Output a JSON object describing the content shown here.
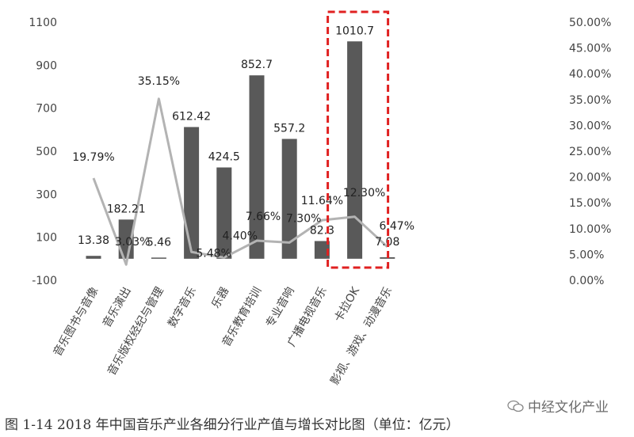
{
  "chart_data": {
    "type": "bar",
    "categories": [
      "音乐图书与音像",
      "音乐演出",
      "音乐版权经纪与管理",
      "数字音乐",
      "乐器",
      "音乐教育培训",
      "专业音响",
      "广播电视音乐",
      "卡拉OK",
      "影视、游戏、动漫音乐"
    ],
    "series": [
      {
        "type": "bar",
        "axis": "left",
        "values": [
          13.38,
          182.21,
          5.46,
          612.42,
          424.5,
          852.7,
          557.2,
          82.3,
          1010.7,
          7.08
        ],
        "labels": [
          "13.38",
          "182.21",
          "5.46",
          "612.42",
          "424.5",
          "852.7",
          "557.2",
          "82.3",
          "1010.7",
          "7.08"
        ],
        "color": "#595959"
      },
      {
        "type": "line",
        "axis": "right",
        "values": [
          19.79,
          3.03,
          35.15,
          5.48,
          4.4,
          7.66,
          7.3,
          11.64,
          12.3,
          6.47
        ],
        "labels": [
          "19.79%",
          "3.03%",
          "35.15%",
          "5.48%",
          "4.40%",
          "7.66%",
          "7.30%",
          "11.64%",
          "12.30%",
          "6.47%"
        ],
        "color": "#b3b3b3"
      }
    ],
    "left_axis": {
      "ticks": [
        "-100",
        "100",
        "300",
        "500",
        "700",
        "900",
        "1100"
      ],
      "range": [
        -100,
        1100
      ]
    },
    "right_axis": {
      "ticks": [
        "0.00%",
        "5.00%",
        "10.00%",
        "15.00%",
        "20.00%",
        "25.00%",
        "30.00%",
        "35.00%",
        "40.00%",
        "45.00%",
        "50.00%"
      ],
      "range": [
        0,
        50
      ]
    },
    "highlight": {
      "category": "卡拉OK",
      "color": "#e02020"
    },
    "grid": false
  },
  "caption": "图 1-14  2018 年中国音乐产业各细分行业产值与增长对比图（单位：亿元）",
  "watermark": "中经文化产业"
}
